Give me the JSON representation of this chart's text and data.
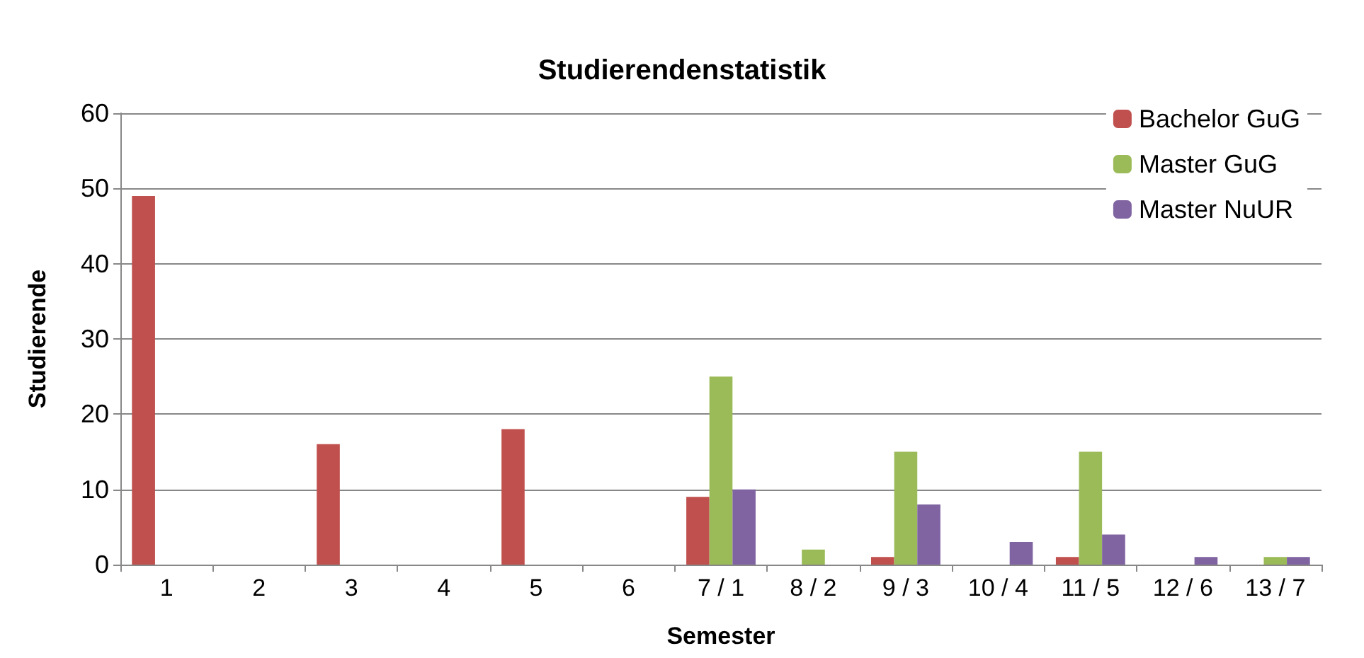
{
  "chart_data": {
    "type": "bar",
    "title": "Studierendenstatistik",
    "xlabel": "Semester",
    "ylabel": "Studierende",
    "categories": [
      "1",
      "2",
      "3",
      "4",
      "5",
      "6",
      "7 / 1",
      "8 / 2",
      "9 / 3",
      "10 / 4",
      "11 / 5",
      "12 / 6",
      "13 / 7"
    ],
    "series": [
      {
        "name": "Bachelor GuG",
        "color": "#c0504d",
        "values": [
          49,
          0,
          16,
          0,
          18,
          0,
          9,
          0,
          1,
          0,
          1,
          0,
          0
        ]
      },
      {
        "name": "Master GuG",
        "color": "#9bbb59",
        "values": [
          0,
          0,
          0,
          0,
          0,
          0,
          25,
          2,
          15,
          0,
          15,
          0,
          1
        ]
      },
      {
        "name": "Master NuUR",
        "color": "#8064a2",
        "values": [
          0,
          0,
          0,
          0,
          0,
          0,
          10,
          0,
          8,
          3,
          4,
          1,
          1
        ]
      }
    ],
    "ylim": [
      0,
      60
    ],
    "yticks": [
      0,
      10,
      20,
      30,
      40,
      50,
      60
    ],
    "grid": "y",
    "legend": "top right"
  }
}
